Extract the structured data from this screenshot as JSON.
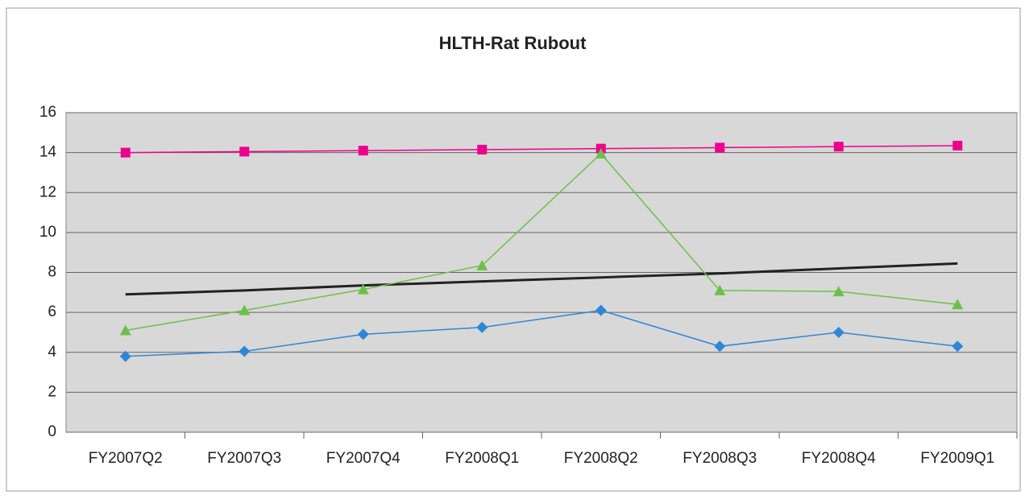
{
  "chart_data": {
    "type": "line",
    "title": "HLTH-Rat Rubout",
    "categories": [
      "FY2007Q2",
      "FY2007Q3",
      "FY2007Q4",
      "FY2008Q1",
      "FY2008Q2",
      "FY2008Q3",
      "FY2008Q4",
      "FY2009Q1"
    ],
    "series": [
      {
        "color": "#ec008c",
        "marker": "square",
        "values": [
          14.0,
          14.05,
          14.1,
          14.15,
          14.2,
          14.25,
          14.3,
          14.35
        ]
      },
      {
        "color": "#222222",
        "marker": "none",
        "values": [
          6.9,
          7.1,
          7.35,
          7.55,
          7.75,
          7.95,
          8.2,
          8.45
        ]
      },
      {
        "color": "#6cc04a",
        "marker": "triangle",
        "values": [
          5.1,
          6.1,
          7.15,
          8.35,
          13.95,
          7.1,
          7.05,
          6.4
        ]
      },
      {
        "color": "#2f86d6",
        "marker": "diamond",
        "values": [
          3.8,
          4.05,
          4.9,
          5.25,
          6.1,
          4.3,
          5.0,
          4.3
        ]
      }
    ],
    "ylim": [
      0,
      16
    ],
    "yticks": [
      0,
      2,
      4,
      6,
      8,
      10,
      12,
      14,
      16
    ],
    "grid": true
  }
}
